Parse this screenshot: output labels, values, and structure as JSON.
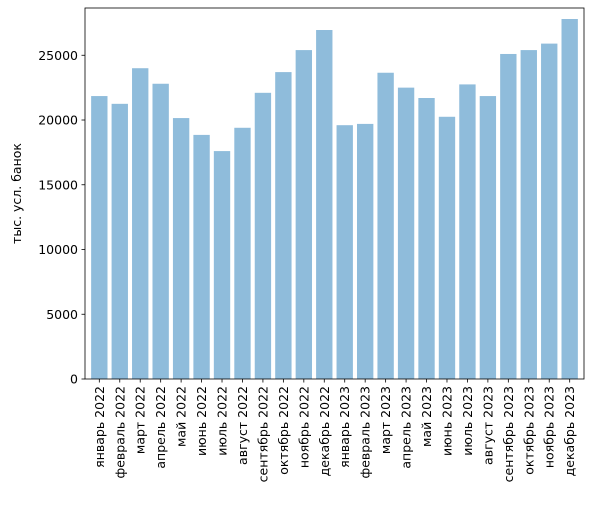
{
  "chart_data": {
    "type": "bar",
    "title": "",
    "xlabel": "",
    "ylabel": "тыс. усл. банок",
    "ylim": [
      0,
      28650
    ],
    "yticks": [
      0,
      5000,
      10000,
      15000,
      20000,
      25000
    ],
    "grid": false,
    "legend": "none",
    "bar_color": "#8fbcdb",
    "categories": [
      "январь 2022",
      "февраль 2022",
      "март 2022",
      "апрель 2022",
      "май 2022",
      "июнь 2022",
      "июль 2022",
      "август 2022",
      "сентябрь 2022",
      "октябрь 2022",
      "ноябрь 2022",
      "декабрь 2022",
      "январь 2023",
      "февраль 2023",
      "март 2023",
      "апрель 2023",
      "май 2023",
      "июнь 2023",
      "июль 2023",
      "август 2023",
      "сентябрь 2023",
      "октябрь 2023",
      "ноябрь 2023",
      "декабрь 2023"
    ],
    "values": [
      21850,
      21250,
      24000,
      22800,
      20150,
      18850,
      17600,
      19400,
      22100,
      23700,
      25400,
      26950,
      19600,
      19700,
      23650,
      22500,
      21700,
      20250,
      22750,
      21850,
      25100,
      25400,
      25900,
      27800
    ]
  }
}
